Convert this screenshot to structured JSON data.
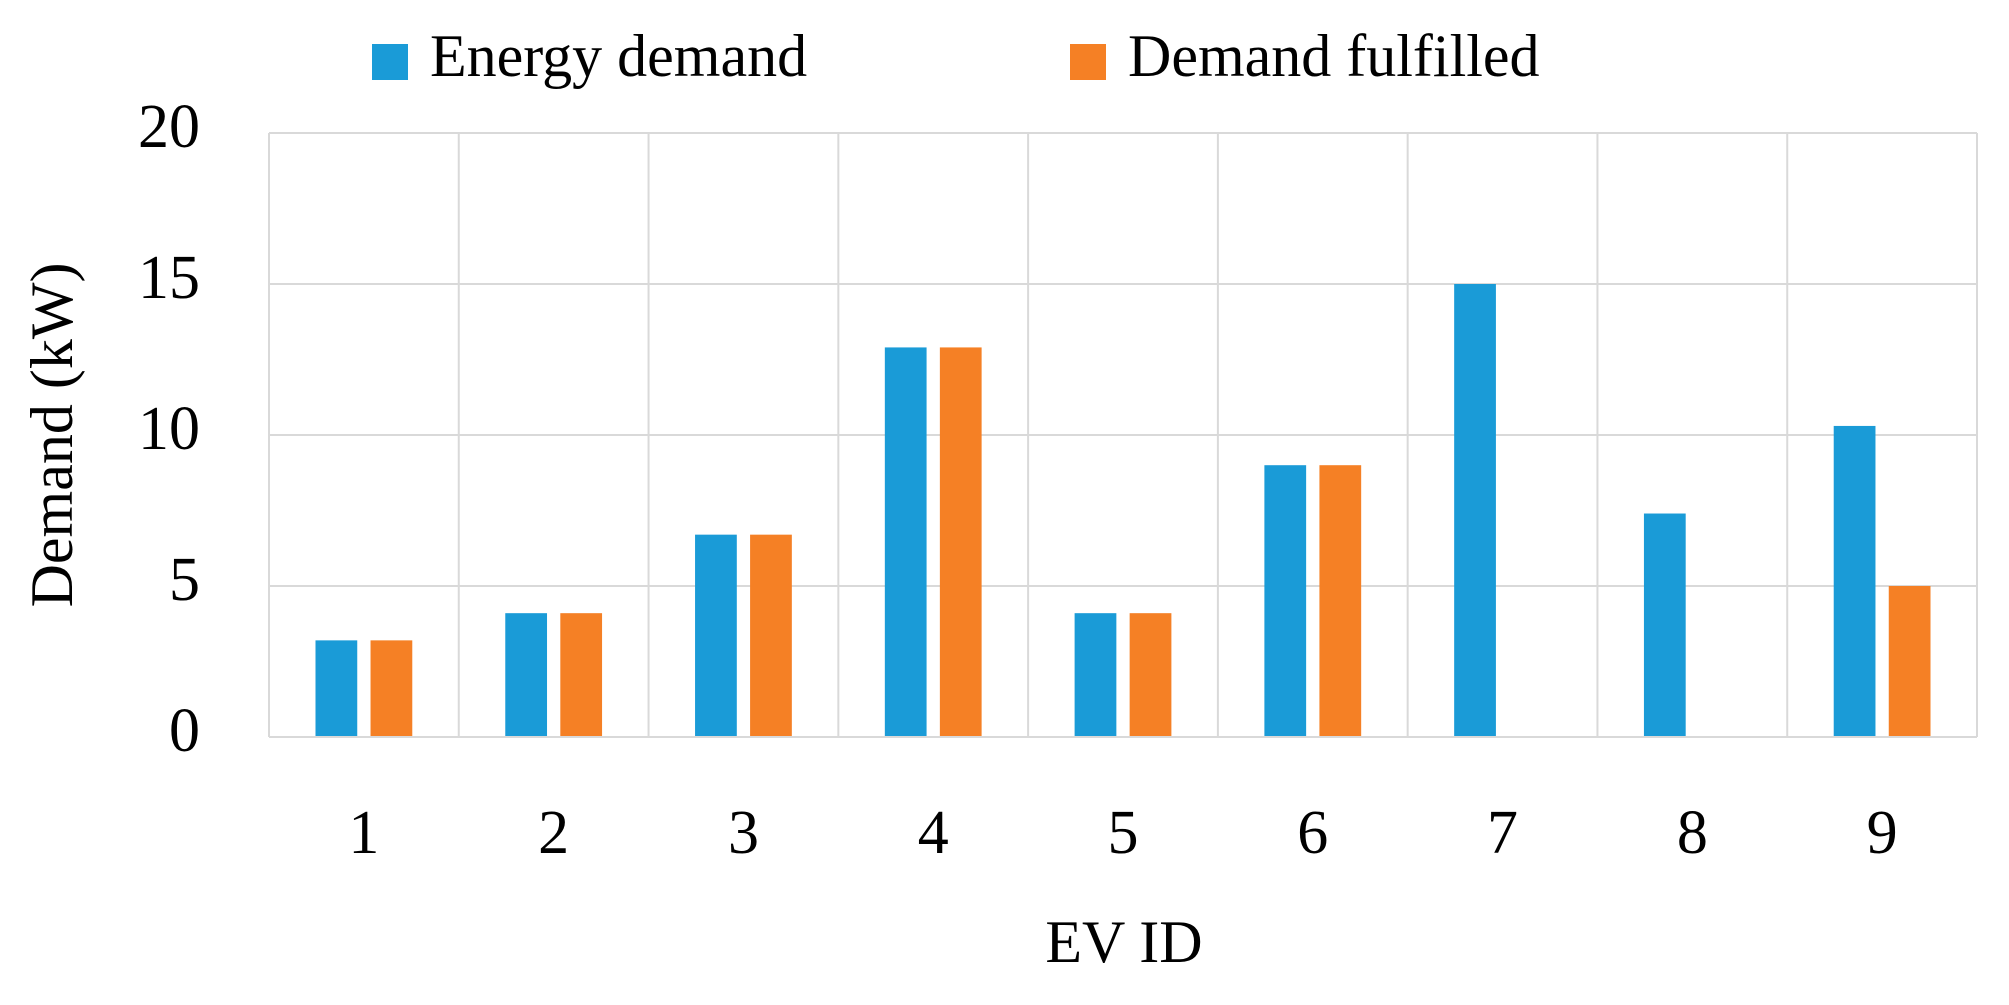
{
  "chart_data": {
    "type": "bar",
    "x_label": "EV ID",
    "y_label": "Demand (kW)",
    "categories": [
      "1",
      "2",
      "3",
      "4",
      "5",
      "6",
      "7",
      "8",
      "9"
    ],
    "series": [
      {
        "name": "Energy demand",
        "color": "#1a9bd7",
        "values": [
          3.2,
          4.1,
          6.7,
          12.9,
          4.1,
          9.0,
          15,
          7.4,
          10.3
        ]
      },
      {
        "name": "Demand fulfilled",
        "color": "#f58025",
        "values": [
          3.2,
          4.1,
          6.7,
          12.9,
          4.1,
          9.0,
          0,
          0,
          5.0
        ]
      }
    ],
    "ylim": [
      0,
      20
    ],
    "yticks": [
      0,
      5,
      10,
      15,
      20
    ],
    "grid": true,
    "legend": "top"
  }
}
